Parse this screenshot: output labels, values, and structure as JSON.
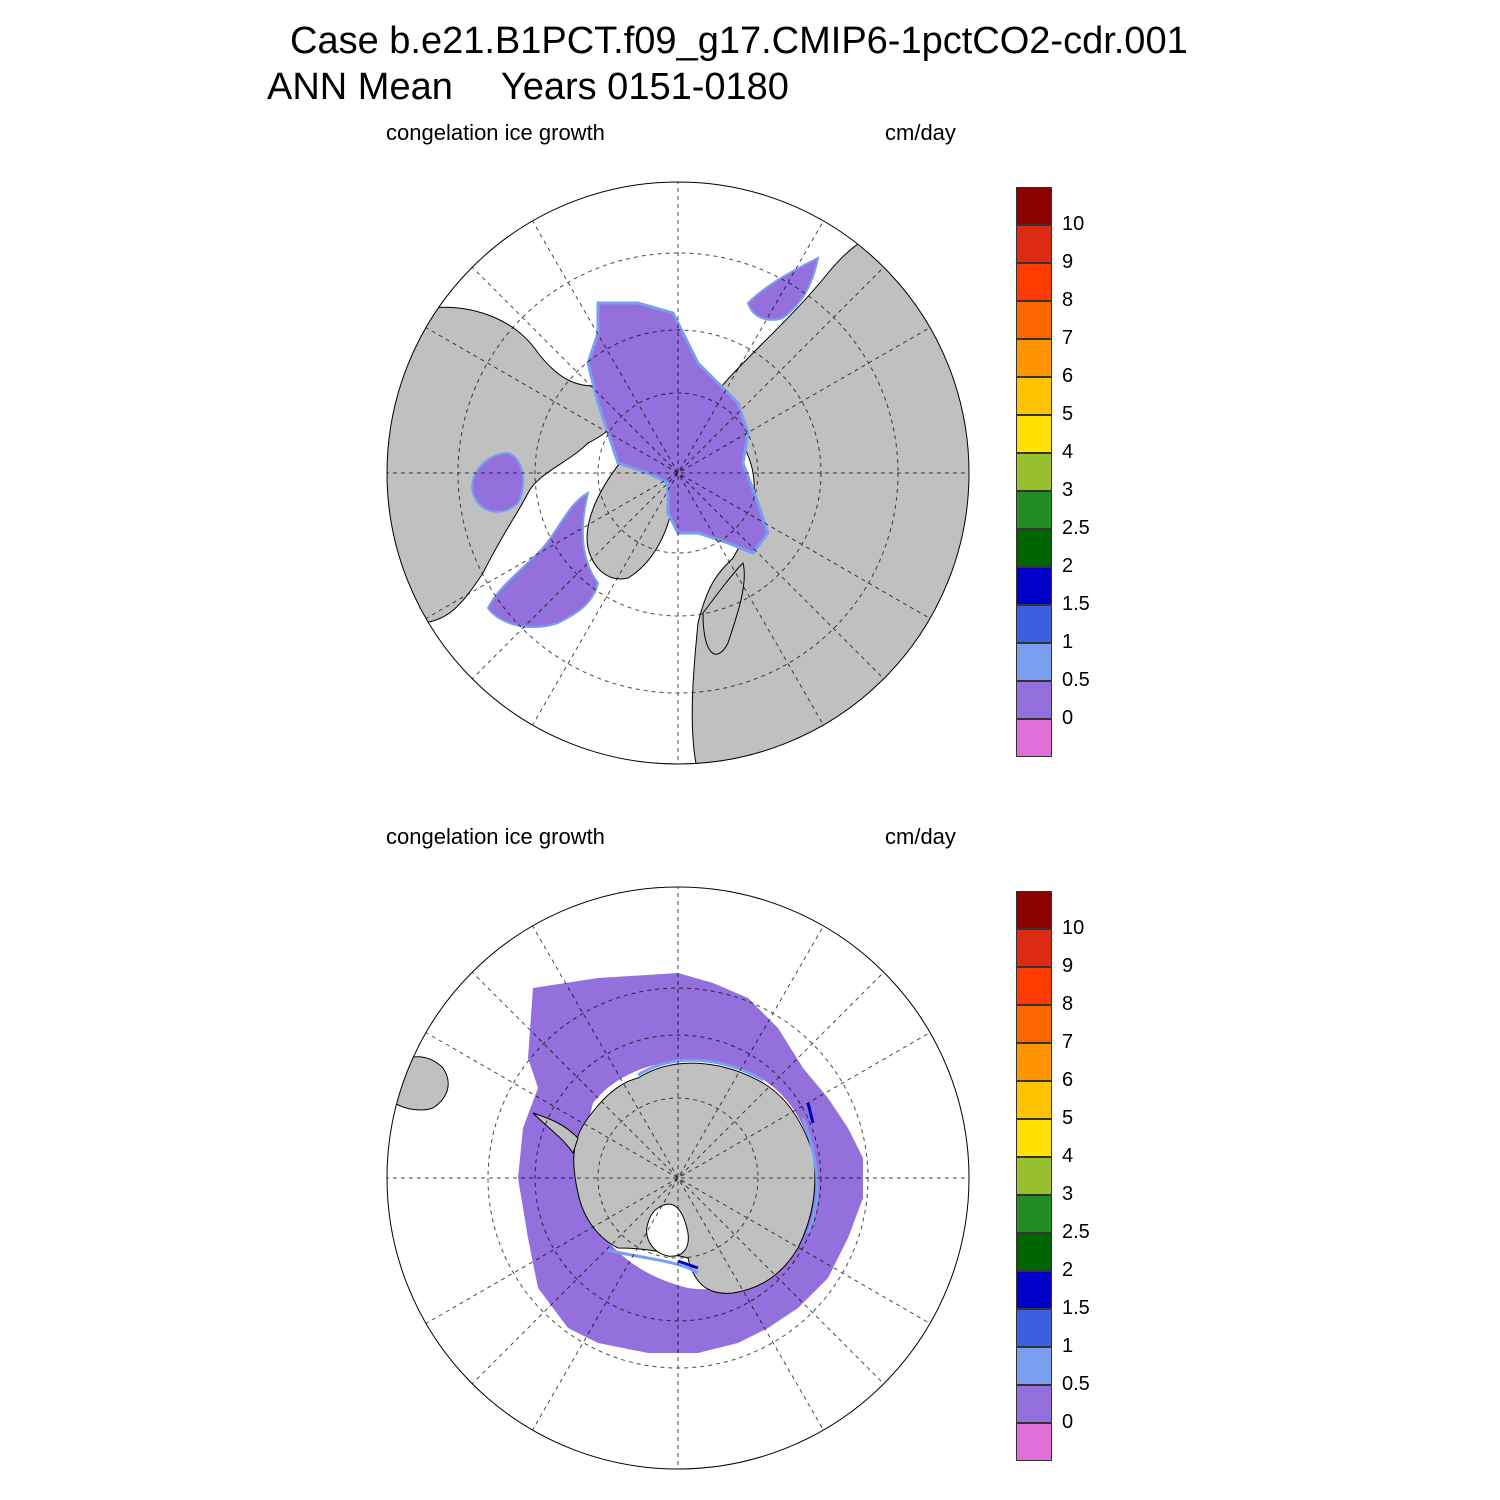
{
  "title": {
    "line1": "Case b.e21.B1PCT.f09_g17.CMIP6-1pctCO2-cdr.001",
    "line2_a": "ANN Mean",
    "line2_b": "Years 0151-0180"
  },
  "panels": [
    {
      "id": "north",
      "left_label": "congelation ice growth",
      "right_label": "cm/day",
      "hemisphere": "Northern"
    },
    {
      "id": "south",
      "left_label": "congelation ice growth",
      "right_label": "cm/day",
      "hemisphere": "Southern"
    }
  ],
  "colorbar": {
    "labels": [
      "10",
      "9",
      "8",
      "7",
      "6",
      "5",
      "4",
      "3",
      "2.5",
      "2",
      "1.5",
      "1",
      "0.5",
      "0"
    ],
    "colors": [
      "#8b0000",
      "#dd2a14",
      "#ff3a00",
      "#ff6600",
      "#ff9500",
      "#ffc200",
      "#ffe000",
      "#99c030",
      "#228b22",
      "#006400",
      "#0000c8",
      "#3a60e0",
      "#7a9ef0",
      "#9370db",
      "#e070d8"
    ]
  },
  "colors": {
    "land": "#c0c0c0",
    "ice": "#9370db",
    "ice_edge": "#7a9ef0",
    "ice_edge_strong": "#0000c8",
    "ocean": "#ffffff"
  }
}
